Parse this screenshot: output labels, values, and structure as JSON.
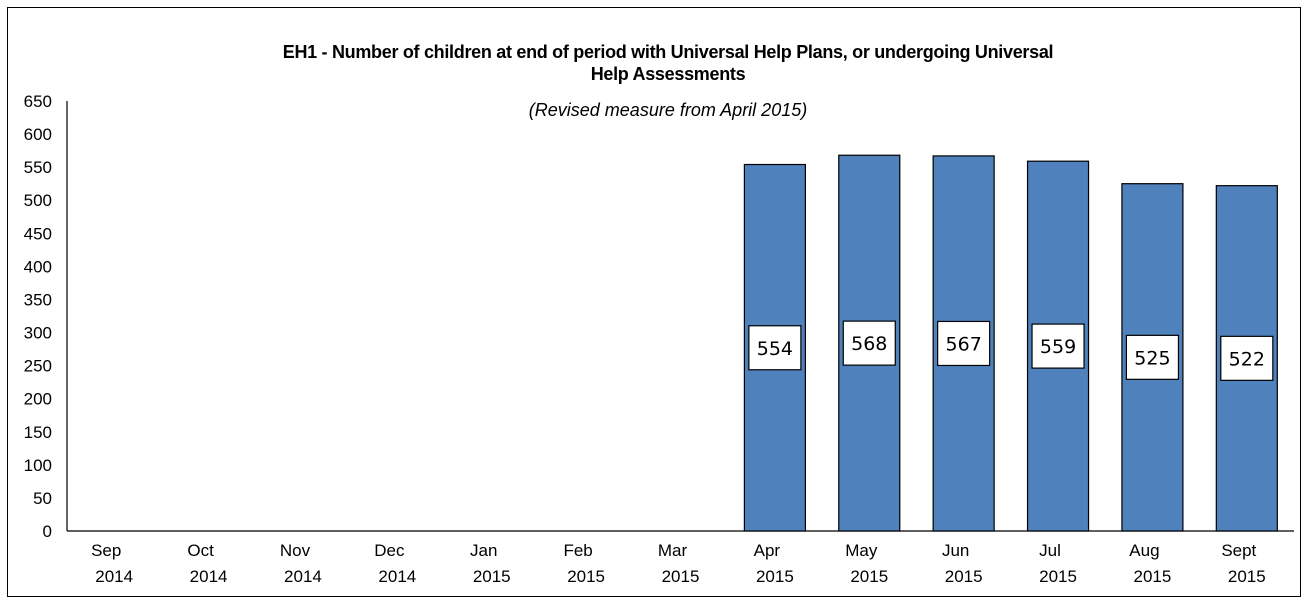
{
  "chart_data": {
    "type": "bar",
    "title_line1": "EH1 - Number of children at end of period with Universal Help Plans, or undergoing Universal",
    "title_line2": "Help Assessments",
    "subtitle": "(Revised measure from April 2015)",
    "categories": [
      [
        "Sep",
        "2014"
      ],
      [
        "Oct",
        "2014"
      ],
      [
        "Nov",
        "2014"
      ],
      [
        "Dec",
        "2014"
      ],
      [
        "Jan",
        "2015"
      ],
      [
        "Feb",
        "2015"
      ],
      [
        "Mar",
        "2015"
      ],
      [
        "Apr",
        "2015"
      ],
      [
        "May",
        "2015"
      ],
      [
        "Jun",
        "2015"
      ],
      [
        "Jul",
        "2015"
      ],
      [
        "Aug",
        "2015"
      ],
      [
        "Sept",
        "2015"
      ]
    ],
    "values": [
      null,
      null,
      null,
      null,
      null,
      null,
      null,
      554,
      568,
      567,
      559,
      525,
      522
    ],
    "ylim": [
      0,
      650
    ],
    "yticks": [
      0,
      50,
      100,
      150,
      200,
      250,
      300,
      350,
      400,
      450,
      500,
      550,
      600,
      650
    ],
    "bar_color": "#4f81bd",
    "grid": false,
    "data_labels": true
  }
}
